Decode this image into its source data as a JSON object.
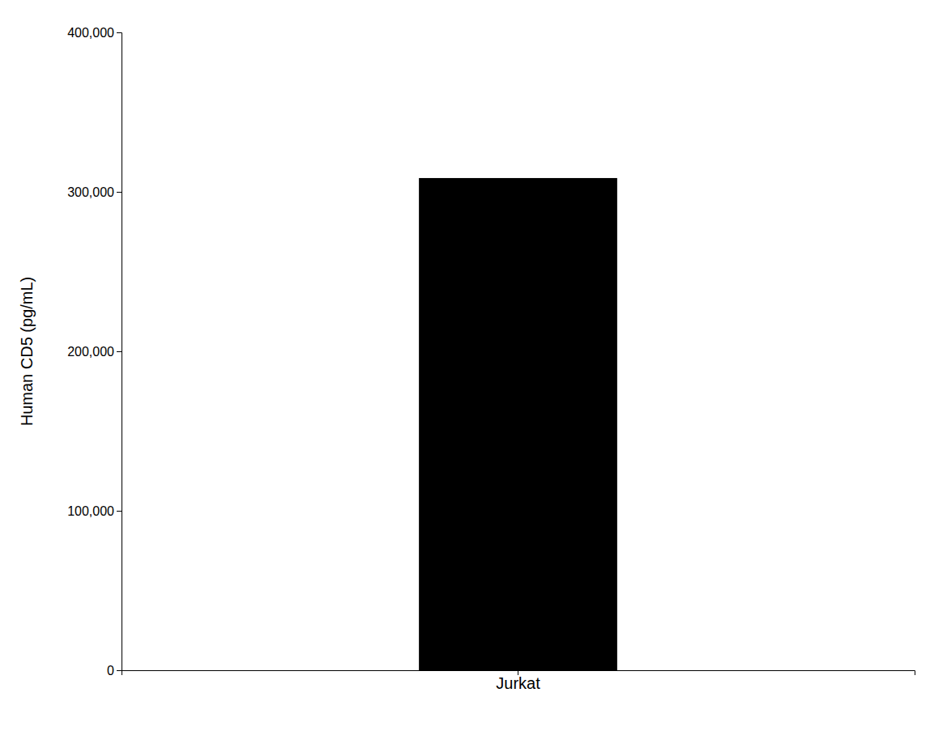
{
  "chart_data": {
    "type": "bar",
    "ylabel": "Human CD5 (pg/mL)",
    "categories": [
      "Jurkat"
    ],
    "values": [
      308651.0
    ],
    "color": "#000000",
    "ylim": [
      0,
      400000
    ],
    "yticks": [
      0,
      {
        "value": 100000,
        "label": "100,000"
      },
      {
        "value": 200000,
        "label": "200,000"
      },
      {
        "value": 300000,
        "label": "300,000"
      },
      {
        "value": 400000,
        "label": "400,000"
      }
    ],
    "grid": false
  }
}
